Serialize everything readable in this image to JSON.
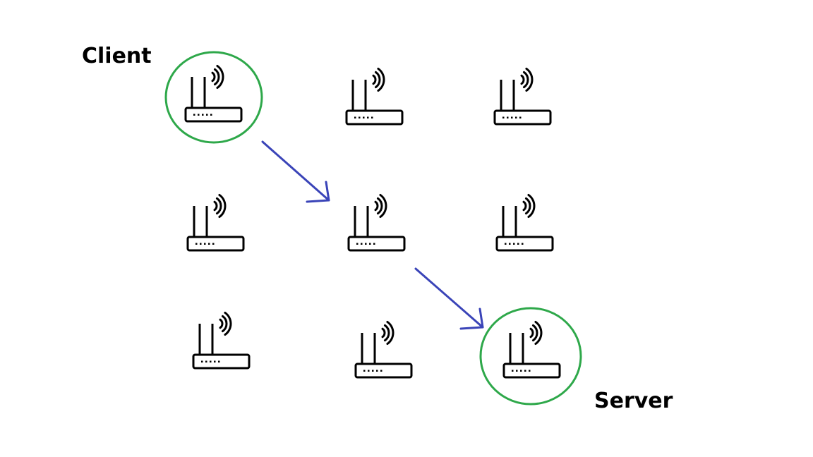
{
  "labels": {
    "client": "Client",
    "server": "Server"
  },
  "routers": [
    {
      "id": "r-1-1",
      "role": "client"
    },
    {
      "id": "r-1-2",
      "role": ""
    },
    {
      "id": "r-1-3",
      "role": ""
    },
    {
      "id": "r-2-1",
      "role": ""
    },
    {
      "id": "r-2-2",
      "role": ""
    },
    {
      "id": "r-2-3",
      "role": ""
    },
    {
      "id": "r-3-1",
      "role": ""
    },
    {
      "id": "r-3-2",
      "role": ""
    },
    {
      "id": "r-3-3",
      "role": "server"
    }
  ],
  "connections": [
    {
      "from": "r-1-1",
      "to": "r-2-2"
    },
    {
      "from": "r-2-2",
      "to": "r-3-3"
    }
  ],
  "icons": {
    "router": "wifi-router-icon"
  },
  "colors": {
    "highlight_ring": "#2ea84a",
    "arrow": "#3a44b8",
    "line": "#000000"
  }
}
